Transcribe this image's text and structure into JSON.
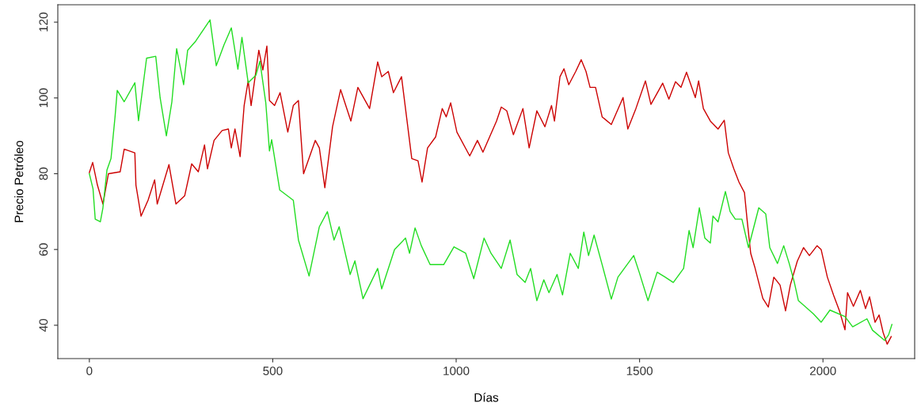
{
  "chart_data": {
    "type": "line",
    "xlabel": "Días",
    "ylabel": "Precio Petróleo",
    "xlim": [
      -86,
      2250
    ],
    "ylim": [
      31.2,
      124.6
    ],
    "xticks": [
      0,
      500,
      1000,
      1500,
      2000
    ],
    "yticks": [
      40,
      60,
      80,
      100,
      120
    ],
    "grid": false,
    "legend": false,
    "marker": "none",
    "line_style": "solid",
    "series": [
      {
        "color": "#cc0000",
        "x": [
          0,
          9,
          22,
          37,
          52,
          84,
          95,
          124,
          127,
          141,
          160,
          178,
          185,
          217,
          236,
          260,
          279,
          297,
          314,
          322,
          340,
          362,
          379,
          387,
          397,
          411,
          422,
          433,
          441,
          462,
          473,
          484,
          491,
          505,
          520,
          541,
          556,
          570,
          584,
          616,
          627,
          642,
          663,
          685,
          713,
          732,
          764,
          786,
          797,
          815,
          829,
          851,
          879,
          896,
          907,
          922,
          944,
          962,
          973,
          985,
          1002,
          1037,
          1058,
          1073,
          1110,
          1123,
          1138,
          1156,
          1182,
          1199,
          1220,
          1242,
          1260,
          1268,
          1283,
          1294,
          1307,
          1326,
          1341,
          1354,
          1365,
          1380,
          1398,
          1423,
          1455,
          1468,
          1490,
          1516,
          1531,
          1563,
          1580,
          1598,
          1613,
          1628,
          1652,
          1661,
          1674,
          1693,
          1714,
          1731,
          1742,
          1757,
          1771,
          1786,
          1793,
          1803,
          1814,
          1836,
          1851,
          1866,
          1883,
          1898,
          1911,
          1930,
          1947,
          1963,
          1984,
          1995,
          2012,
          2029,
          2045,
          2060,
          2067,
          2083,
          2102,
          2116,
          2127,
          2142,
          2153,
          2164,
          2175,
          2186
        ],
        "values": [
          80.3,
          83,
          77,
          72,
          80,
          80.5,
          86.5,
          85.5,
          77,
          68.8,
          73,
          78.4,
          72,
          82.4,
          72,
          74.2,
          82.6,
          80.5,
          87.6,
          81.3,
          88.8,
          91.4,
          91.8,
          86.8,
          91.8,
          84.5,
          98,
          104.5,
          98,
          112.6,
          107.4,
          113.7,
          99.3,
          98,
          101.4,
          91,
          98,
          99.3,
          80,
          88.8,
          86.8,
          76.3,
          92.4,
          102.2,
          93.9,
          102.8,
          97.2,
          109.5,
          105.6,
          107,
          101.4,
          105.6,
          84,
          83.4,
          77.8,
          86.8,
          89.7,
          97.2,
          95,
          98.7,
          91,
          84.7,
          88.8,
          85.7,
          93.9,
          97.6,
          96.6,
          90.3,
          97.2,
          86.8,
          96.6,
          92.4,
          98,
          93.9,
          105.6,
          107.7,
          103.5,
          107,
          110.1,
          107,
          102.8,
          102.8,
          95,
          93,
          100.1,
          91.8,
          97.2,
          104.5,
          98.3,
          103.9,
          99.7,
          104.3,
          102.8,
          106.8,
          100.1,
          104.5,
          97.2,
          93.9,
          91.8,
          94.1,
          85.5,
          81.3,
          77.8,
          75,
          68,
          59,
          55.4,
          47.1,
          44.8,
          52.7,
          50.6,
          43.8,
          50.6,
          56.9,
          60.5,
          58.4,
          61,
          60,
          52.7,
          47.9,
          43.8,
          38.8,
          48.6,
          45,
          49.2,
          44.4,
          47.5,
          40.8,
          42.7,
          38.1,
          35,
          37
        ]
      },
      {
        "color": "#22dd22",
        "x": [
          0,
          10,
          16,
          30,
          37,
          48,
          59,
          70,
          76,
          95,
          124,
          134,
          156,
          181,
          193,
          210,
          225,
          238,
          257,
          268,
          290,
          329,
          346,
          367,
          387,
          405,
          416,
          433,
          454,
          465,
          481,
          491,
          497,
          519,
          556,
          570,
          599,
          627,
          649,
          667,
          681,
          711,
          724,
          746,
          786,
          797,
          832,
          862,
          873,
          888,
          905,
          929,
          966,
          994,
          1026,
          1048,
          1076,
          1095,
          1123,
          1147,
          1166,
          1188,
          1203,
          1220,
          1239,
          1253,
          1275,
          1290,
          1311,
          1333,
          1348,
          1361,
          1376,
          1398,
          1423,
          1441,
          1484,
          1499,
          1523,
          1548,
          1570,
          1592,
          1620,
          1635,
          1646,
          1663,
          1678,
          1693,
          1700,
          1714,
          1734,
          1747,
          1761,
          1779,
          1797,
          1825,
          1844,
          1855,
          1876,
          1893,
          1908,
          1922,
          1933,
          1974,
          1995,
          2019,
          2060,
          2081,
          2120,
          2135,
          2168,
          2179,
          2188
        ],
        "values": [
          80,
          76,
          68,
          67.3,
          71,
          81,
          84,
          95,
          102,
          99,
          104,
          94,
          110.5,
          111,
          100,
          90,
          99,
          113,
          103.5,
          112.6,
          115,
          120.6,
          108.5,
          114,
          118.5,
          107.6,
          116,
          104,
          106,
          109.7,
          98.7,
          86,
          89,
          75.7,
          73,
          62.5,
          53,
          66,
          70,
          62.5,
          66,
          53.4,
          57,
          47,
          55,
          49.6,
          60,
          63,
          59,
          65.7,
          61,
          56,
          56,
          60.7,
          59,
          52.3,
          63,
          59,
          55,
          62.5,
          53.4,
          51.3,
          55,
          46.5,
          52,
          48.6,
          53.4,
          48,
          59,
          55,
          64.6,
          58.4,
          63.8,
          56,
          46.9,
          52.7,
          58.4,
          54,
          46.5,
          54,
          52.7,
          51.3,
          55,
          65,
          60.5,
          71,
          63,
          61.7,
          68.8,
          67.3,
          75.3,
          70,
          68,
          68,
          60.5,
          71,
          69.4,
          60.5,
          56.3,
          61,
          56.3,
          51.3,
          46.5,
          43,
          40.8,
          44,
          42.3,
          39.6,
          41.7,
          38.7,
          36,
          37.5,
          40.2
        ]
      }
    ]
  }
}
